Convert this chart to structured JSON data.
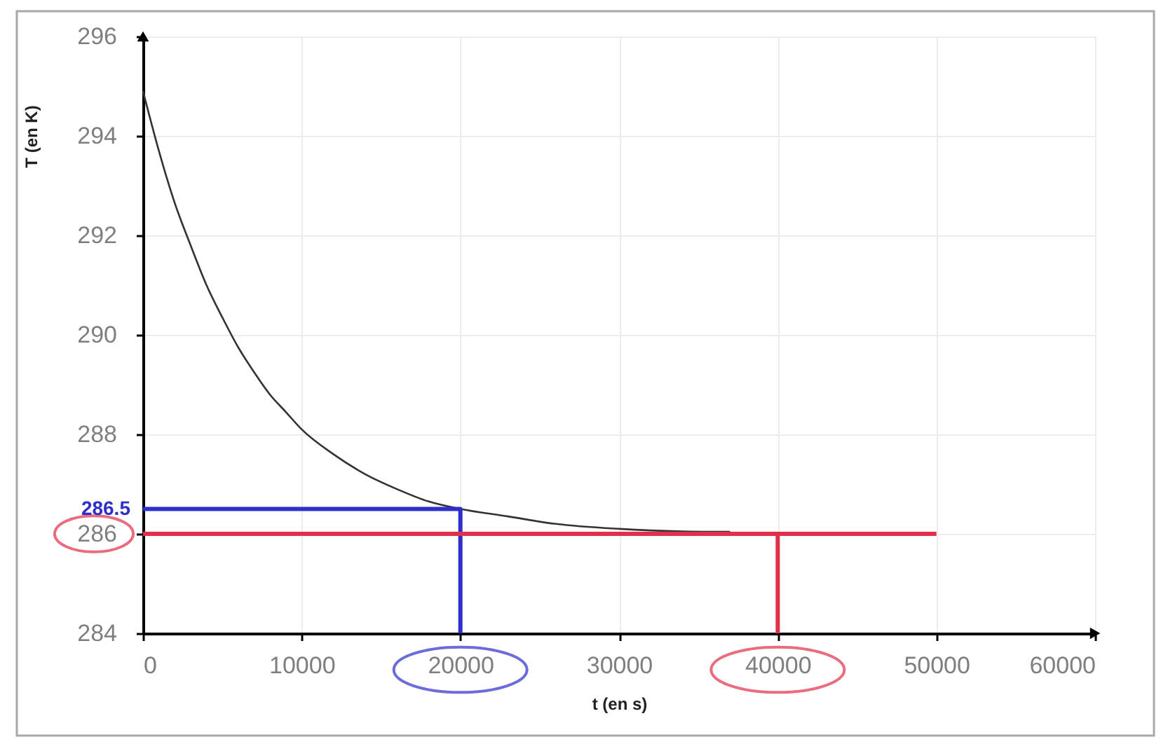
{
  "chart_data": {
    "type": "line",
    "xlabel": "t (en s)",
    "ylabel": "T (en K)",
    "xlim": [
      0,
      60000
    ],
    "ylim": [
      284,
      296
    ],
    "xticks": [
      0,
      10000,
      20000,
      30000,
      40000,
      50000,
      60000
    ],
    "yticks": [
      284,
      286,
      288,
      290,
      292,
      294,
      296
    ],
    "grid": true,
    "series": [
      {
        "color": "#333333",
        "x": [
          0,
          1000,
          2000,
          3000,
          4000,
          5000,
          6000,
          7000,
          8000,
          9000,
          10000,
          12000,
          14000,
          16000,
          18000,
          20000,
          23000,
          26000,
          30000,
          34000,
          37000
        ],
        "values": [
          294.9,
          293.7,
          292.65,
          291.8,
          291.0,
          290.35,
          289.75,
          289.25,
          288.8,
          288.45,
          288.1,
          287.6,
          287.2,
          286.9,
          286.65,
          286.5,
          286.35,
          286.2,
          286.1,
          286.05,
          286.04
        ]
      },
      {
        "color": "#2e2ecc",
        "x": [
          0,
          20000,
          20000
        ],
        "values": [
          286.5,
          286.5,
          284
        ]
      },
      {
        "color": "#e0304a",
        "x": [
          0,
          50000
        ],
        "values": [
          286,
          286
        ]
      },
      {
        "color": "#e0304a",
        "x": [
          40000,
          40000
        ],
        "values": [
          286,
          284
        ]
      }
    ],
    "annotations": [
      {
        "text": "286.5",
        "x": 0,
        "y": 286.5
      }
    ]
  }
}
